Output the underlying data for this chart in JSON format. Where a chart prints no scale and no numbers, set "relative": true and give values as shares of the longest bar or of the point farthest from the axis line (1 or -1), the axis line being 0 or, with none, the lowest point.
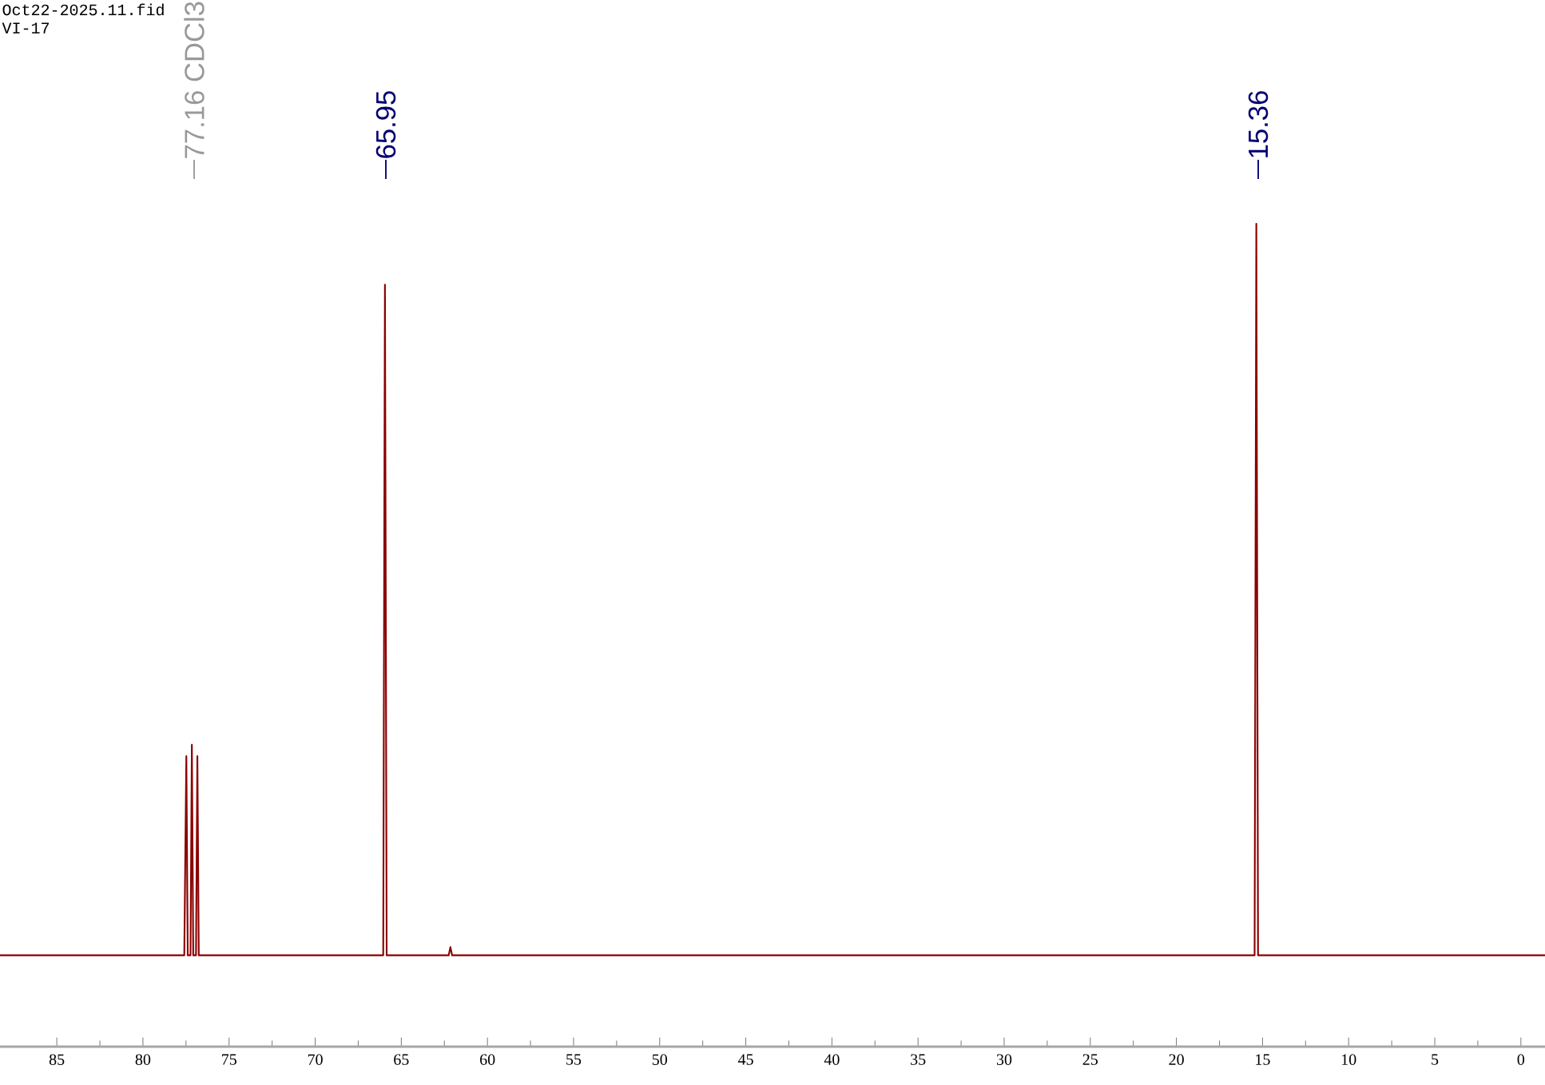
{
  "chart_data": {
    "type": "line",
    "relative": true,
    "x": [
      88.3,
      77.6,
      77.48,
      77.4,
      77.24,
      77.16,
      77.08,
      76.92,
      76.84,
      76.76,
      66.05,
      65.95,
      65.85,
      62.25,
      62.15,
      62.05,
      15.46,
      15.36,
      15.26,
      -1.4
    ],
    "series": [
      {
        "color": "#8b0000",
        "values": [
          0.111,
          0.111,
          0.353,
          0.111,
          0.111,
          0.367,
          0.111,
          0.111,
          0.353,
          0.111,
          0.111,
          0.926,
          0.111,
          0.111,
          0.121,
          0.111,
          0.111,
          1,
          0.111,
          0.111
        ]
      }
    ],
    "xlim": [
      88.3,
      -1.4
    ],
    "xticks": [
      85,
      80,
      75,
      70,
      65,
      60,
      55,
      50,
      45,
      40,
      35,
      30,
      25,
      20,
      15,
      10,
      5,
      0
    ],
    "tick_labels": "x",
    "grid": false,
    "marker": "none",
    "line_style": "solid",
    "annotations": [
      "Oct22-2025.11.fid",
      "VI-17",
      "77.16 CDCl3",
      "65.95",
      "15.36"
    ]
  }
}
